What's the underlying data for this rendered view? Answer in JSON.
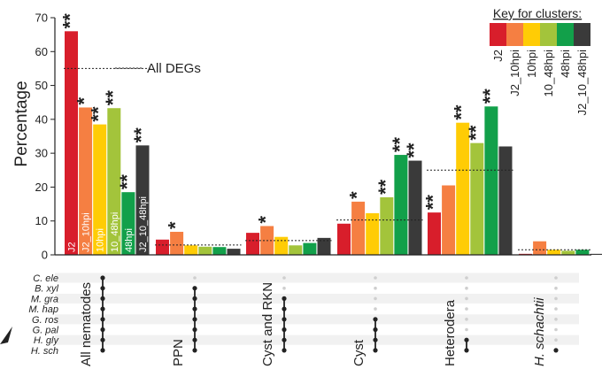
{
  "chart_data": {
    "type": "bar",
    "ylabel": "Percentage",
    "ylim": [
      0,
      70
    ],
    "yticks": [
      0,
      10,
      20,
      30,
      40,
      50,
      60,
      70
    ],
    "reference_line_label": "All DEGs",
    "legend": {
      "title": "Key for clusters:",
      "placement": "top-right",
      "entries": [
        "J2",
        "J2_10hpi",
        "10hpi",
        "10_48hpi",
        "48hpi",
        "J2_10_48hpi"
      ]
    },
    "series": [
      {
        "name": "J2",
        "color": "#d81e2b"
      },
      {
        "name": "J2_10hpi",
        "color": "#f57f42"
      },
      {
        "name": "10hpi",
        "color": "#ffcc05"
      },
      {
        "name": "10_48hpi",
        "color": "#a3c43b"
      },
      {
        "name": "48hpi",
        "color": "#12a04a"
      },
      {
        "name": "J2_10_48hpi",
        "color": "#3a3a3a"
      }
    ],
    "in_bar_labels": [
      "J2",
      "J2_10hpi",
      "10hpi",
      "10_48hpi",
      "48hpi",
      "J2_10_48hpi"
    ],
    "groups": [
      {
        "label": "All nematodes",
        "values": [
          66,
          43.5,
          38.5,
          43.3,
          18.5,
          32.3
        ],
        "sig": [
          "**",
          "*",
          "**",
          "**",
          "**",
          "**"
        ],
        "baseline": 55
      },
      {
        "label": "PPN",
        "values": [
          4.5,
          6.8,
          2.8,
          2.4,
          2.3,
          1.8
        ],
        "sig": [
          "",
          "*",
          "",
          "",
          "",
          ""
        ],
        "baseline": 2.9
      },
      {
        "label": "Cyst and RKN",
        "values": [
          6.5,
          8.5,
          5.3,
          2.8,
          3.5,
          5.0
        ],
        "sig": [
          "",
          "*",
          "",
          "",
          "",
          ""
        ],
        "baseline": 4.2
      },
      {
        "label": "Cyst",
        "values": [
          9.2,
          15.7,
          12.3,
          17,
          29.5,
          27.8
        ],
        "sig": [
          "",
          "*",
          "",
          "**",
          "**",
          "**"
        ],
        "baseline": 10.3
      },
      {
        "label": "Heterodera",
        "values": [
          12.5,
          20.5,
          39,
          33,
          43.8,
          32
        ],
        "sig": [
          "**",
          "",
          "**",
          "**",
          "**",
          ""
        ],
        "baseline": 25
      },
      {
        "label": "H. schachtii",
        "values": [
          0.3,
          4.0,
          1.5,
          1.2,
          1.5,
          0.3
        ],
        "sig": [
          "",
          "",
          "",
          "",
          "",
          ""
        ],
        "baseline": 1.5
      }
    ],
    "species": [
      "C. ele",
      "B. xyl",
      "M. gra",
      "M. hap",
      "G. ros",
      "G. pal",
      "H. gly",
      "H. sch"
    ],
    "membership": [
      [
        true,
        true,
        true,
        true,
        true,
        true,
        true,
        true
      ],
      [
        false,
        true,
        true,
        true,
        true,
        true,
        true,
        true
      ],
      [
        false,
        false,
        true,
        true,
        true,
        true,
        true,
        true
      ],
      [
        false,
        false,
        false,
        false,
        true,
        true,
        true,
        true
      ],
      [
        false,
        false,
        false,
        false,
        false,
        false,
        true,
        true
      ],
      [
        false,
        false,
        false,
        false,
        false,
        false,
        false,
        true
      ]
    ]
  }
}
